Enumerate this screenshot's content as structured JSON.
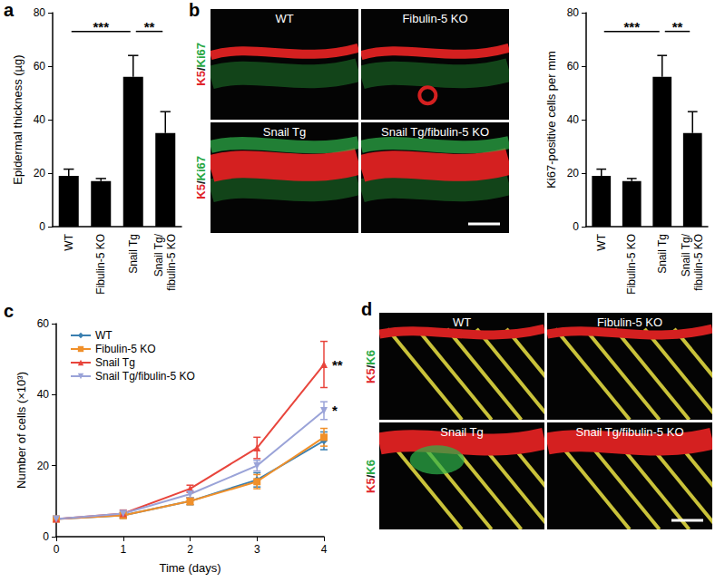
{
  "panel_labels": [
    "a",
    "b",
    "c",
    "d"
  ],
  "chart_data": [
    {
      "type": "bar",
      "y_label": "Epidermal thickness (µg)",
      "categories": [
        "WT",
        "Fibulin-5 KO",
        "Snail Tg",
        "Snail Tg/\nfibulin-5 KO"
      ],
      "values": [
        19,
        17,
        56,
        35
      ],
      "errors": [
        2.5,
        1,
        8,
        8
      ],
      "color": "#000000",
      "ylim": [
        0,
        80
      ],
      "yticks": [
        0,
        20,
        40,
        60,
        80
      ],
      "grid": false,
      "annotations": [
        {
          "from": 0,
          "to": 2,
          "y": 73,
          "text": "***"
        },
        {
          "from": 2,
          "to": 3,
          "y": 73,
          "text": "**"
        }
      ]
    },
    {
      "type": "bar",
      "y_label": "Ki67-positive cells per mm",
      "categories": [
        "WT",
        "Fibulin-5 KO",
        "Snail Tg",
        "Snail Tg/\nfibulin-5 KO"
      ],
      "values": [
        19,
        17,
        56,
        35
      ],
      "errors": [
        2.5,
        1,
        8,
        8
      ],
      "color": "#000000",
      "ylim": [
        0,
        80
      ],
      "yticks": [
        0,
        20,
        40,
        60,
        80
      ],
      "grid": false,
      "annotations": [
        {
          "from": 0,
          "to": 2,
          "y": 73,
          "text": "***"
        },
        {
          "from": 2,
          "to": 3,
          "y": 73,
          "text": "**"
        }
      ]
    },
    {
      "type": "line",
      "x_label": "Time (days)",
      "y_label": "Number of cells (×10³)",
      "x": [
        0,
        1,
        2,
        3,
        4
      ],
      "xlim": [
        0,
        4
      ],
      "xticks": [
        0,
        1,
        2,
        3,
        4
      ],
      "ylim": [
        0,
        60
      ],
      "yticks": [
        0,
        20,
        40,
        60
      ],
      "grid": false,
      "legend": "upper left",
      "series": [
        {
          "name": "WT",
          "color": "#3a7fb0",
          "marker": "diamond",
          "values": [
            5,
            6,
            10,
            16,
            27
          ],
          "errors": [
            0.3,
            0.8,
            1,
            2,
            2.5
          ]
        },
        {
          "name": "Fibulin-5 KO",
          "color": "#f0902a",
          "marker": "square",
          "values": [
            5,
            6,
            10,
            15.5,
            28
          ],
          "errors": [
            0.3,
            0.8,
            1,
            2,
            2.5
          ]
        },
        {
          "name": "Snail Tg",
          "color": "#e8453c",
          "marker": "triangle",
          "values": [
            5,
            6.5,
            13.5,
            25,
            48.5
          ],
          "errors": [
            0.3,
            1,
            1,
            3,
            6.5
          ]
        },
        {
          "name": "Snail Tg/fibulin-5 KO",
          "color": "#9aa3d8",
          "marker": "triangle_down",
          "values": [
            5,
            6.5,
            12,
            20,
            35.5
          ],
          "errors": [
            0.3,
            0.8,
            1,
            1.5,
            2.5
          ]
        }
      ],
      "annotations": [
        {
          "x": 4,
          "y": 48.5,
          "text": "**"
        },
        {
          "x": 4,
          "y": 35.5,
          "text": "*"
        }
      ]
    }
  ],
  "images": [
    {
      "stain": [
        {
          "text": "K5",
          "color": "#e0262b"
        },
        {
          "text": "/",
          "color": "#222222"
        },
        {
          "text": "Ki67",
          "color": "#2aa845"
        }
      ],
      "conditions": [
        "WT",
        "Fibulin-5 KO",
        "Snail Tg",
        "Snail Tg/fibulin-5 KO"
      ]
    },
    {
      "stain": [
        {
          "text": "K5",
          "color": "#e0262b"
        },
        {
          "text": "/",
          "color": "#222222"
        },
        {
          "text": "K6",
          "color": "#2aa845"
        }
      ],
      "conditions": [
        "WT",
        "Fibulin-5 KO",
        "Snail Tg",
        "Snail Tg/fibulin-5 KO"
      ]
    }
  ]
}
